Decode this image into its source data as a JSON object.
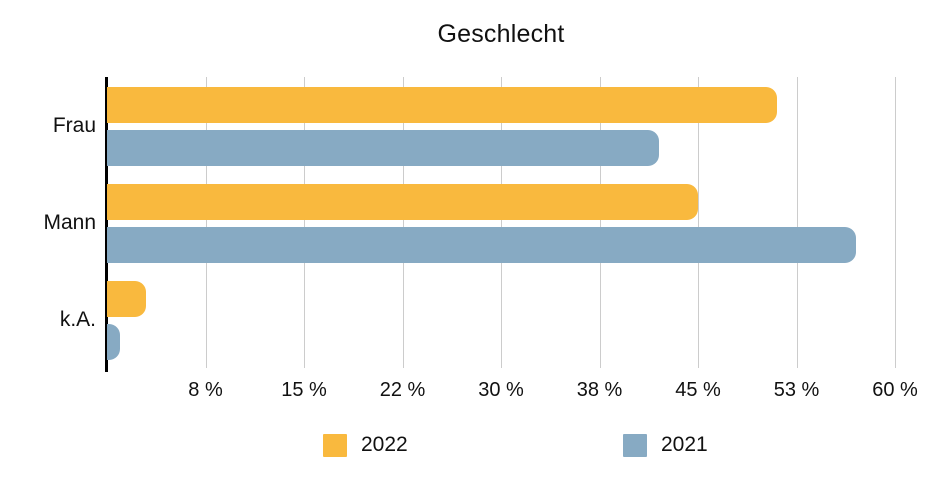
{
  "title": "Geschlecht",
  "chart_data": {
    "type": "bar",
    "orientation": "horizontal",
    "title": "Geschlecht",
    "categories": [
      "Frau",
      "Mann",
      "k.A."
    ],
    "series": [
      {
        "name": "2022",
        "color": "#F9B93E",
        "values": [
          51,
          45,
          3
        ]
      },
      {
        "name": "2021",
        "color": "#87AAC3",
        "values": [
          42,
          57,
          1
        ]
      }
    ],
    "xlim": [
      0,
      60
    ],
    "x_ticks": [
      {
        "value": 7.5,
        "label": "8 %"
      },
      {
        "value": 15,
        "label": "15 %"
      },
      {
        "value": 22.5,
        "label": "22 %"
      },
      {
        "value": 30,
        "label": "30 %"
      },
      {
        "value": 37.5,
        "label": "38 %"
      },
      {
        "value": 45,
        "label": "45 %"
      },
      {
        "value": 52.5,
        "label": "53 %"
      },
      {
        "value": 60,
        "label": "60 %"
      }
    ],
    "grid": true,
    "legend_position": "bottom",
    "axis_color": "#000000",
    "gridline_color": "#cccccc",
    "background_color": "#ffffff"
  }
}
